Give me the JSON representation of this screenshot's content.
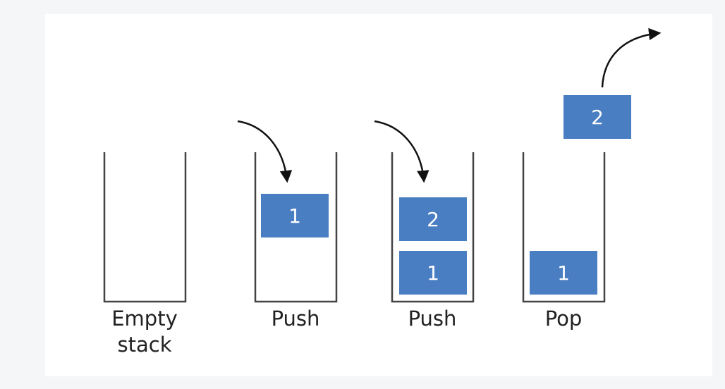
{
  "stacks": [
    {
      "caption_line1": "Empty",
      "caption_line2": "stack"
    },
    {
      "caption": "Push",
      "item_bottom": "1"
    },
    {
      "caption": "Push",
      "item_top": "2",
      "item_bottom": "1"
    },
    {
      "caption": "Pop",
      "item_bottom": "1",
      "popped_item": "2"
    }
  ],
  "colors": {
    "box_fill": "#4a7ec2",
    "stack_outline": "#444444",
    "arrow": "#111111",
    "caption_text": "#222222",
    "background": "#f4f6f8",
    "panel": "#ffffff"
  },
  "icons": {
    "push_arrow": "curved-arrow-down-icon",
    "pop_arrow": "curved-arrow-up-right-icon"
  }
}
